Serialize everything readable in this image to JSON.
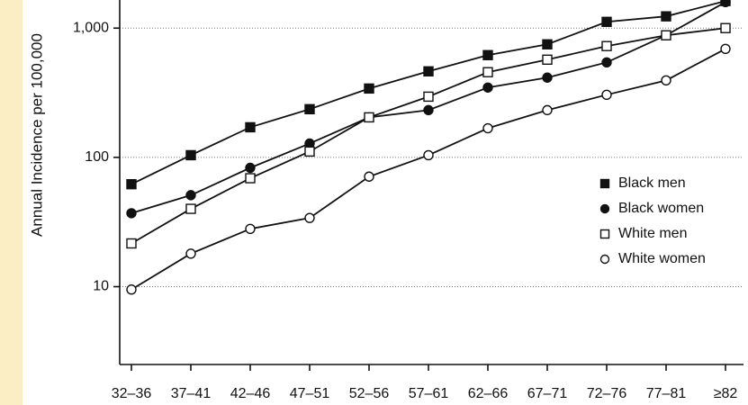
{
  "chart_data": {
    "type": "line",
    "y_label": "Annual Incidence per 100,000",
    "categories": [
      "32–36",
      "37–41",
      "42–46",
      "47–51",
      "52–56",
      "57–61",
      "62–66",
      "67–71",
      "72–76",
      "77–81",
      "≥82"
    ],
    "log_scale": true,
    "ylim": [
      2.5,
      1650
    ],
    "yticks": [
      10,
      100,
      {
        "value": 1000,
        "label": "1,000"
      }
    ],
    "grid": true,
    "legend": "right",
    "series": [
      {
        "name": "Black men",
        "color": "#111111",
        "marker": "square",
        "filled": true,
        "values": [
          62,
          104,
          171,
          236,
          341,
          463,
          618,
          749,
          1118,
          1233,
          1620
        ]
      },
      {
        "name": "Black women",
        "color": "#111111",
        "marker": "circle",
        "filled": true,
        "values": [
          37,
          51,
          83,
          128,
          204,
          232,
          347,
          414,
          543,
          880,
          1590
        ]
      },
      {
        "name": "White men",
        "color": "#111111",
        "marker": "square",
        "filled": false,
        "values": [
          21.6,
          40,
          69,
          111,
          204,
          295,
          456,
          570,
          726,
          880,
          1000
        ]
      },
      {
        "name": "White women",
        "color": "#111111",
        "marker": "circle",
        "filled": false,
        "values": [
          9.5,
          18,
          28,
          34,
          71,
          104,
          168,
          232,
          305,
          394,
          691
        ]
      }
    ]
  }
}
